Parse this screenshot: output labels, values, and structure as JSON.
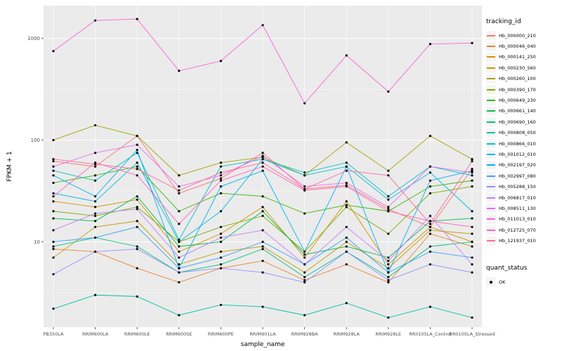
{
  "figure": {
    "panel_bg": "#EBEBEB",
    "grid_color": "#FFFFFF",
    "tick_color": "#333333",
    "tick_label_color": "#4D4D4D",
    "point_color": "#000000",
    "y_axis_title": "FPKM + 1",
    "x_axis_title": "sample_name"
  },
  "legend": {
    "tracking_title": "tracking_id",
    "quant_title": "quant_status",
    "quant_items": [
      {
        "label": "OK",
        "marker": "point",
        "color": "#000000"
      }
    ]
  },
  "chart_data": {
    "type": "line",
    "title": "",
    "xlabel": "sample_name",
    "ylabel": "FPKM + 1",
    "y_scale": "log10",
    "ylim": [
      1.45,
      2100
    ],
    "yticks": [
      10,
      100,
      1000
    ],
    "ytick_labels": [
      "10",
      "100",
      "1000"
    ],
    "minor_yticks": [
      3.162,
      31.62,
      316.2
    ],
    "grid": true,
    "legend_position": "right",
    "point_marker": "black-dot",
    "categories": [
      "PB350LA",
      "RRIM600LA",
      "RRIM600LE",
      "RRIM600SE",
      "RRIM600PE",
      "RRIM901LA",
      "RRIM928BA",
      "RRIM928LA",
      "RRIM928LE",
      "RRII105LA_Control",
      "RRII105LA_Stressed"
    ],
    "series": [
      {
        "name": "Hb_000000_210",
        "color": "#F8766D",
        "values": [
          62,
          55,
          110,
          30,
          42,
          75,
          33,
          36,
          21,
          14,
          52
        ]
      },
      {
        "name": "Hb_000046_040",
        "color": "#EA8331",
        "values": [
          8.5,
          8,
          5.5,
          4,
          5.5,
          6.5,
          4.2,
          6,
          4,
          12,
          9
        ]
      },
      {
        "name": "Hb_000141_250",
        "color": "#D89000",
        "values": [
          25,
          22,
          26,
          8,
          12,
          22,
          7,
          25,
          6,
          14,
          10
        ]
      },
      {
        "name": "Hb_000230_560",
        "color": "#C09B00",
        "values": [
          7,
          14,
          16,
          6,
          8,
          9,
          5,
          10,
          5.5,
          13,
          12
        ]
      },
      {
        "name": "Hb_000260_100",
        "color": "#A3A500",
        "values": [
          100,
          140,
          110,
          45,
          60,
          68,
          45,
          95,
          50,
          110,
          65
        ]
      },
      {
        "name": "Hb_000390_170",
        "color": "#7CAE00",
        "values": [
          20,
          18,
          22,
          10,
          14,
          18,
          8,
          22,
          12,
          30,
          35
        ]
      },
      {
        "name": "Hb_000649_230",
        "color": "#39B600",
        "values": [
          38,
          45,
          55,
          20,
          30,
          28,
          19,
          23,
          20,
          35,
          40
        ]
      },
      {
        "name": "Hb_000661_140",
        "color": "#00BB4E",
        "values": [
          17,
          16,
          28,
          9,
          10,
          20,
          7.5,
          9,
          7,
          16,
          17
        ]
      },
      {
        "name": "Hb_000690_160",
        "color": "#00BF7D",
        "values": [
          9,
          11,
          9,
          5,
          6,
          8.5,
          4.5,
          8,
          4.5,
          9,
          10
        ]
      },
      {
        "name": "Hb_000808_050",
        "color": "#00C1A3",
        "values": [
          2.2,
          3,
          2.9,
          1.9,
          2.4,
          2.3,
          1.9,
          2.5,
          1.8,
          2.3,
          1.8
        ]
      },
      {
        "name": "Hb_000866_010",
        "color": "#00BFC4",
        "values": [
          50,
          40,
          75,
          10.5,
          55,
          65,
          48,
          60,
          28,
          55,
          45
        ]
      },
      {
        "name": "Hb_001012_010",
        "color": "#00BAE0",
        "values": [
          30,
          25,
          60,
          10,
          20,
          65,
          45,
          55,
          26,
          48,
          20
        ]
      },
      {
        "name": "Hb_002197_020",
        "color": "#00B0F6",
        "values": [
          45,
          28,
          80,
          5.5,
          35,
          50,
          8,
          55,
          5,
          40,
          50
        ]
      },
      {
        "name": "Hb_002997_080",
        "color": "#35A2FF",
        "values": [
          10,
          11,
          14,
          5.5,
          7,
          10,
          6,
          11,
          5,
          8,
          7
        ]
      },
      {
        "name": "Hb_005288_150",
        "color": "#9590FF",
        "values": [
          4.8,
          8,
          8.5,
          5,
          5.5,
          5,
          4,
          8,
          4.2,
          6,
          5
        ]
      },
      {
        "name": "Hb_006817_010",
        "color": "#C77CFF",
        "values": [
          13,
          19,
          21,
          7,
          11,
          13,
          6,
          14,
          6.5,
          18,
          6
        ]
      },
      {
        "name": "Hb_008511_130",
        "color": "#E76BF3",
        "values": [
          55,
          75,
          90,
          35,
          45,
          70,
          35,
          38,
          22,
          55,
          48
        ]
      },
      {
        "name": "Hb_011013_010",
        "color": "#FA62DB",
        "values": [
          750,
          1500,
          1550,
          480,
          600,
          1350,
          230,
          680,
          300,
          880,
          900
        ]
      },
      {
        "name": "Hb_012725_070",
        "color": "#FF62BC",
        "values": [
          28,
          60,
          45,
          15,
          40,
          55,
          32,
          35,
          20,
          16,
          14
        ]
      },
      {
        "name": "Hb_121937_010",
        "color": "#FF6A98",
        "values": [
          65,
          58,
          52,
          32,
          48,
          60,
          33,
          50,
          45,
          15,
          62
        ]
      }
    ]
  }
}
